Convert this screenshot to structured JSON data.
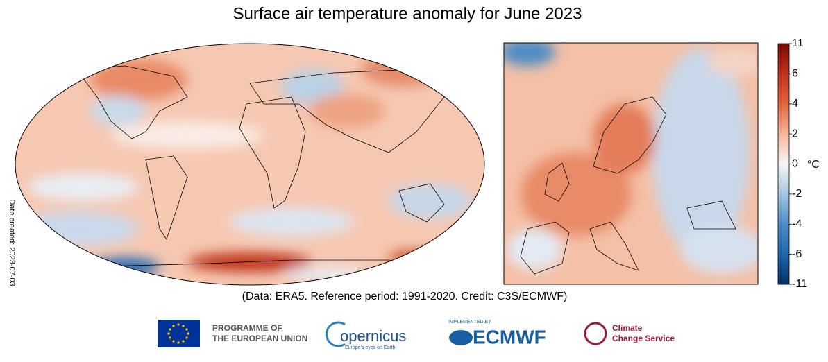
{
  "chart_data": {
    "type": "map",
    "title": "Surface air temperature anomaly for June 2023",
    "caption": "(Data: ERA5.  Reference period: 1991-2020.  Credit: C3S/ECMWF)",
    "date_created": "Date created: 2023-07-03",
    "colorbar_unit": "°C",
    "colorbar_ticks": [
      -11,
      -6,
      -4,
      -2,
      0,
      2,
      4,
      6,
      11
    ],
    "colorbar_colors": [
      "#053061",
      "#2166ac",
      "#4d8cc4",
      "#a6c6e0",
      "#f7f7f7",
      "#f5b89c",
      "#e2653f",
      "#c0341f",
      "#7a0a05"
    ]
  },
  "logos": {
    "eu_line1": "PROGRAMME OF",
    "eu_line2": "THE EUROPEAN UNION",
    "copernicus": "opernicus",
    "copernicus_tagline": "Europe's eyes on Earth",
    "implemented_by": "IMPLEMENTED BY",
    "ecmwf": "ECMWF",
    "c3s_line1": "Climate",
    "c3s_line2": "Change Service"
  }
}
